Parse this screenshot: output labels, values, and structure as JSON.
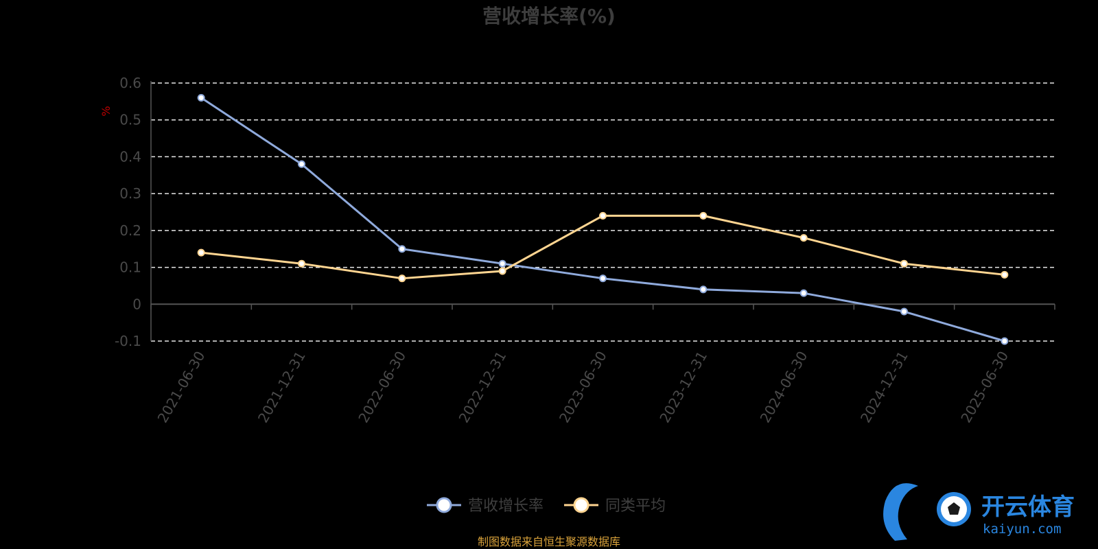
{
  "chart_data": {
    "type": "line",
    "title": "营收增长率(%)",
    "ylabel": "%",
    "xlabel": "",
    "categories": [
      "2021-06-30",
      "2021-12-31",
      "2022-06-30",
      "2022-12-31",
      "2023-06-30",
      "2023-12-31",
      "2024-06-30",
      "2024-12-31",
      "2025-06-30"
    ],
    "ylim": [
      -0.1,
      0.6
    ],
    "yticks": [
      "0.6",
      "0.5",
      "0.4",
      "0.3",
      "0.2",
      "0.1",
      "0",
      "-0.1"
    ],
    "grid": true,
    "legend_position": "bottom-center",
    "series": [
      {
        "name": "营收增长率",
        "color": "#8faadc",
        "values": [
          0.56,
          0.38,
          0.15,
          0.11,
          0.07,
          0.04,
          0.03,
          -0.02,
          -0.1
        ]
      },
      {
        "name": "同类平均",
        "color": "#ffd591",
        "values": [
          0.14,
          0.11,
          0.07,
          0.09,
          0.24,
          0.24,
          0.18,
          0.11,
          0.08
        ]
      }
    ],
    "source_note": "制图数据来自恒生聚源数据库"
  },
  "watermark": {
    "brand": "开云体育",
    "domain": "kaiyun.com",
    "color": "#2a86e0"
  }
}
